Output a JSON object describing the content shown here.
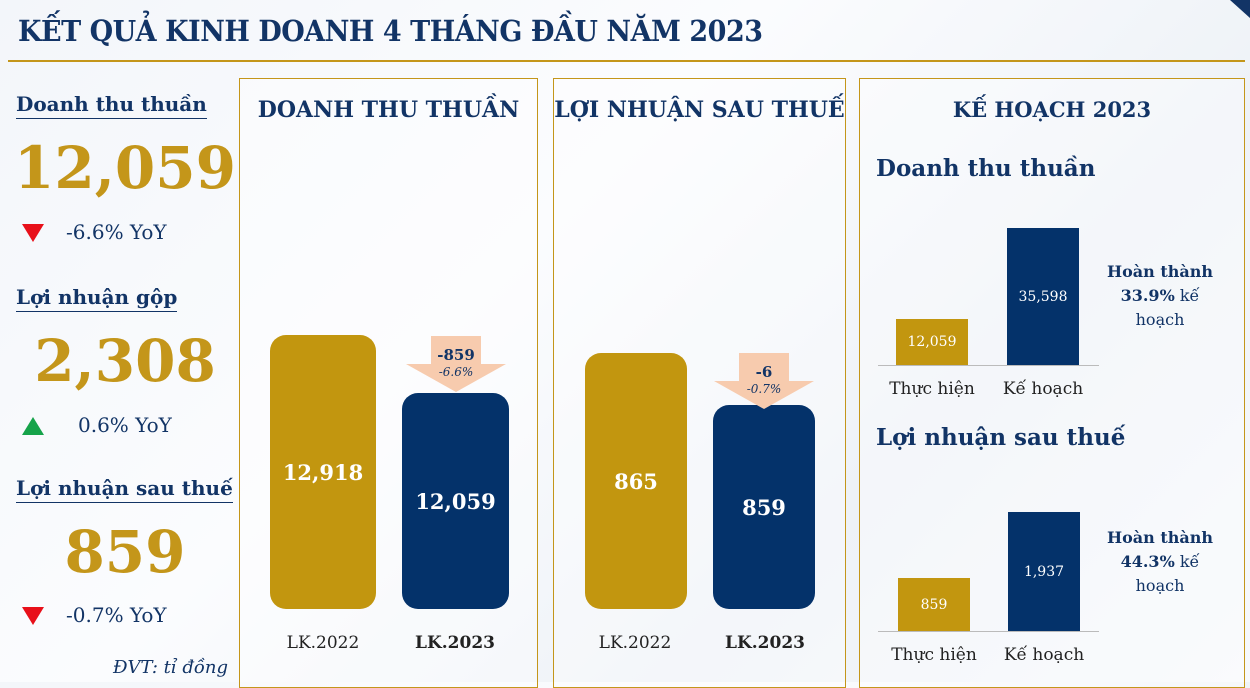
{
  "header": {
    "title": "KẾT QUẢ KINH DOANH 4 THÁNG ĐẦU NĂM 2023"
  },
  "summary": [
    {
      "label": "Doanh thu thuần",
      "value": "12,059",
      "trend": "down",
      "yoy": "-6.6% YoY"
    },
    {
      "label": "Lợi nhuận gộp",
      "value": "2,308",
      "trend": "up",
      "yoy": "0.6% YoY"
    },
    {
      "label": "Lợi nhuận sau thuế",
      "value": "859",
      "trend": "down",
      "yoy": "-0.7% YoY"
    }
  ],
  "unit": "ĐVT: tỉ đồng",
  "colors": {
    "gold": "#c2960f",
    "navy": "#04326a",
    "down": "#e8101a",
    "up": "#16a34a",
    "arrow": "#f7cbae"
  },
  "panels": [
    {
      "title": "DOANH THU THUẦN",
      "bars": [
        {
          "label": "LK.2022",
          "value": "12,918"
        },
        {
          "label": "LK.2023",
          "value": "12,059"
        }
      ],
      "change": "-859",
      "change_pct": "-6.6%"
    },
    {
      "title": "LỢI NHUẬN SAU THUẾ",
      "bars": [
        {
          "label": "LK.2022",
          "value": "865"
        },
        {
          "label": "LK.2023",
          "value": "859"
        }
      ],
      "change": "-6",
      "change_pct": "-0.7%"
    }
  ],
  "plan": {
    "title": "KẾ HOẠCH 2023",
    "sections": [
      {
        "title": "Doanh thu thuần",
        "actual_label": "Thực hiện",
        "actual": "12,059",
        "plan_label": "Kế hoạch",
        "plan": "35,598",
        "done_1": "Hoàn thành",
        "done_pct": "33.9%",
        "done_2": " kế",
        "done_3": "hoạch"
      },
      {
        "title": "Lợi nhuận sau thuế",
        "actual_label": "Thực hiện",
        "actual": "859",
        "plan_label": "Kế hoạch",
        "plan": "1,937",
        "done_1": "Hoàn thành",
        "done_pct": "44.3%",
        "done_2": " kế",
        "done_3": "hoạch"
      }
    ]
  }
}
